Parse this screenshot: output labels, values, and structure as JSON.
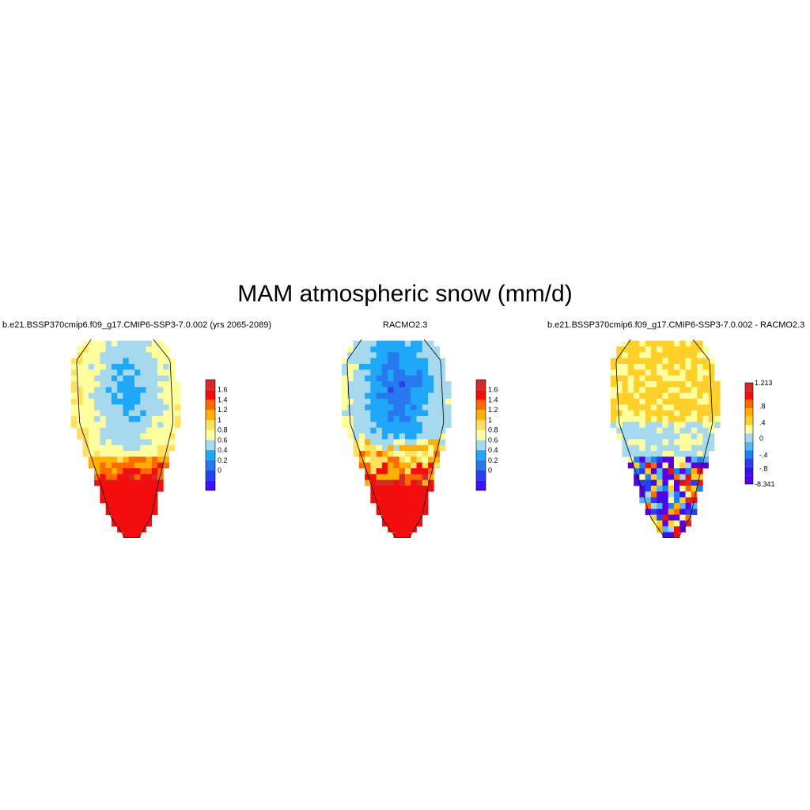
{
  "figure": {
    "title": "MAM atmospheric snow (mm/d)"
  },
  "panels": [
    {
      "title": "b.e21.BSSP370cmip6.f09_g17.CMIP6-SSP3-7.0.002 (yrs 2065-2089)",
      "colorbar": {
        "tick_labels": [
          "1.6",
          "1.4",
          "1.2",
          "1",
          "0.8",
          "0.6",
          "0.4",
          "0.2",
          "0"
        ],
        "colors": [
          "#d42c2c",
          "#f30d0d",
          "#ff6a00",
          "#ffb000",
          "#ffe060",
          "#ffffa0",
          "#a6d8ee",
          "#1fa8f8",
          "#2878f0",
          "#2a40f0",
          "#4010f8"
        ]
      }
    },
    {
      "title": "RACMO2.3",
      "colorbar": {
        "tick_labels": [
          "1.6",
          "1.4",
          "1.2",
          "1",
          "0.8",
          "0.6",
          "0.4",
          "0.2",
          "0"
        ],
        "colors": [
          "#d42c2c",
          "#f30d0d",
          "#ff6a00",
          "#ffb000",
          "#ffe060",
          "#ffffa0",
          "#a6d8ee",
          "#1fa8f8",
          "#2878f0",
          "#2a40f0",
          "#4010f8"
        ]
      }
    },
    {
      "title": "b.e21.BSSP370cmip6.f09_g17.CMIP6-SSP3-7.0.002 - RACMO2.3",
      "colorbar": {
        "tick_labels": [
          "1.213",
          ".8",
          ".4",
          "0",
          "-.4",
          "-.8",
          "-8.341"
        ],
        "colors": [
          "#d42c2c",
          "#f30d0d",
          "#ff6a00",
          "#ffb000",
          "#ffd02a",
          "#ffffa0",
          "#a6d8ee",
          "#5ab4f4",
          "#1f80f0",
          "#2a40f0",
          "#3a10f0",
          "#5a00e0"
        ]
      }
    }
  ]
}
